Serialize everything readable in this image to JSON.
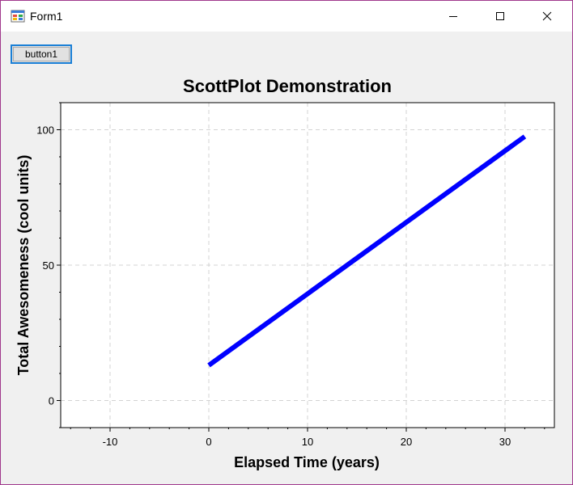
{
  "window": {
    "title": "Form1",
    "icons": {
      "app": "winforms-app-icon",
      "minimize": "minimize-icon",
      "maximize": "maximize-icon",
      "close": "close-icon"
    }
  },
  "form": {
    "button_label": "button1"
  },
  "chart_data": {
    "type": "line",
    "title": "ScottPlot Demonstration",
    "xlabel": "Elapsed Time (years)",
    "ylabel": "Total Awesomeness (cool units)",
    "xlim": [
      -15,
      35
    ],
    "ylim": [
      -10,
      110
    ],
    "xticks": [
      -10,
      0,
      10,
      20,
      30
    ],
    "yticks": [
      0,
      50,
      100
    ],
    "grid": true,
    "series": [
      {
        "color": "#0000ff",
        "x": [
          0,
          32
        ],
        "y": [
          13,
          97.5
        ]
      }
    ],
    "colors": {
      "background": "#f0f0f0",
      "plot_area": "#ffffff",
      "grid": "#d3d3d3"
    }
  }
}
